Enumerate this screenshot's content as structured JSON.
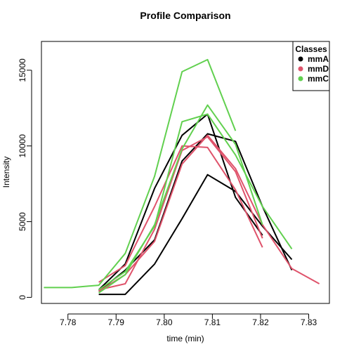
{
  "chart_data": {
    "type": "line",
    "title": "Profile Comparison",
    "xlabel": "time (min)",
    "ylabel": "Intensity",
    "xlim": [
      7.7745,
      7.8343
    ],
    "ylim": [
      -400,
      16900
    ],
    "xticks": [
      7.78,
      7.79,
      7.8,
      7.81,
      7.82,
      7.83
    ],
    "xtick_labels": [
      "7.78",
      "7.79",
      "7.80",
      "7.81",
      "7.82",
      "7.83"
    ],
    "yticks": [
      0,
      5000,
      10000,
      15000
    ],
    "ytick_labels": [
      "0",
      "5000",
      "10000",
      "15000"
    ],
    "grid": false,
    "legend": {
      "title": "Classes",
      "position": "top-right",
      "entries": [
        {
          "label": "mmA",
          "color": "#000000"
        },
        {
          "label": "mmD",
          "color": "#DF536B"
        },
        {
          "label": "mmC",
          "color": "#61D04F"
        }
      ]
    },
    "series": [
      {
        "class": "mmA",
        "color": "#000000",
        "x": [
          7.7864,
          7.7919,
          7.798,
          7.8037,
          7.809,
          7.8148,
          7.8204,
          7.8265
        ],
        "y": [
          200,
          200,
          2200,
          5200,
          8100,
          7000,
          4700,
          2500
        ]
      },
      {
        "class": "mmA",
        "color": "#000000",
        "x": [
          7.7864,
          7.7919,
          7.798,
          7.8037,
          7.809,
          7.8148,
          7.8204
        ],
        "y": [
          500,
          2200,
          7200,
          10700,
          12100,
          6600,
          4100
        ]
      },
      {
        "class": "mmA",
        "color": "#000000",
        "x": [
          7.7864,
          7.7919,
          7.798,
          7.8037,
          7.809,
          7.8148,
          7.8204,
          7.8265
        ],
        "y": [
          400,
          1800,
          3800,
          9000,
          10800,
          10300,
          6000,
          1800
        ]
      },
      {
        "class": "mmD",
        "color": "#DF536B",
        "x": [
          7.7864,
          7.7919,
          7.798,
          7.8037,
          7.809,
          7.8148,
          7.8204,
          7.8265,
          7.8322
        ],
        "y": [
          400,
          1500,
          3700,
          8800,
          10700,
          8500,
          4800,
          1900,
          900
        ]
      },
      {
        "class": "mmD",
        "color": "#DF536B",
        "x": [
          7.7864,
          7.7919,
          7.798,
          7.8037,
          7.809,
          7.8148,
          7.8204
        ],
        "y": [
          1000,
          2100,
          6000,
          10000,
          9900,
          7100,
          3300
        ]
      },
      {
        "class": "mmD",
        "color": "#DF536B",
        "x": [
          7.7864,
          7.7919,
          7.798,
          7.8037,
          7.809,
          7.8148,
          7.8204
        ],
        "y": [
          500,
          900,
          4500,
          9700,
          10600,
          8300,
          3900
        ]
      },
      {
        "class": "mmC",
        "color": "#61D04F",
        "x": [
          7.775,
          7.7808,
          7.7864,
          7.7919,
          7.798,
          7.8037,
          7.809,
          7.8148
        ],
        "y": [
          650,
          650,
          800,
          2900,
          8000,
          14900,
          15700,
          11000
        ]
      },
      {
        "class": "mmC",
        "color": "#61D04F",
        "x": [
          7.7864,
          7.7919,
          7.798,
          7.8037,
          7.809,
          7.8148,
          7.8204,
          7.8265
        ],
        "y": [
          500,
          1700,
          4700,
          11600,
          12100,
          9400,
          6000,
          3200
        ]
      },
      {
        "class": "mmC",
        "color": "#61D04F",
        "x": [
          7.7864,
          7.7919,
          7.798,
          7.8037,
          7.809,
          7.8148,
          7.8204
        ],
        "y": [
          300,
          1500,
          4800,
          9800,
          12700,
          10100,
          4800
        ]
      }
    ]
  }
}
